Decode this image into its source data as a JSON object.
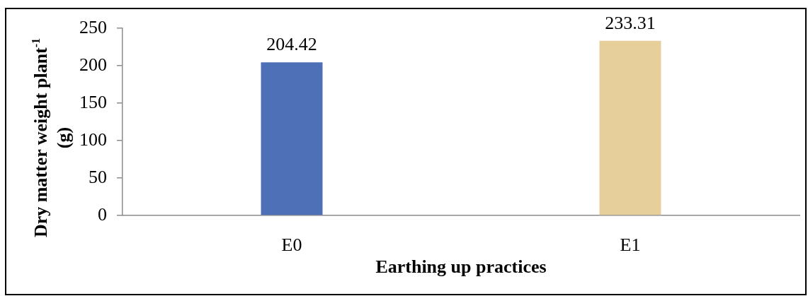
{
  "chart_data": {
    "type": "bar",
    "xlabel": "Earthing up practices",
    "ylabel": "Dry matter weight plant$^{-1}$ (g)",
    "categories": [
      "E0",
      "E1"
    ],
    "values": [
      204.42,
      233.31
    ],
    "colors": [
      "#4d70b6",
      "#e6cf9a"
    ],
    "ylim": [
      0,
      250
    ],
    "yticks": [
      0,
      50,
      100,
      150,
      200,
      250
    ],
    "data_labels": true
  }
}
